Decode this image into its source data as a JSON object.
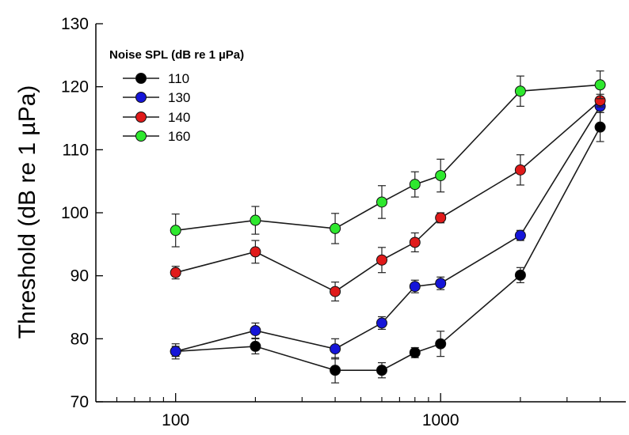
{
  "chart_data": {
    "type": "line",
    "title": "",
    "xlabel": "",
    "ylabel": "Threshold (dB re 1 µPa)",
    "x_scale": "log",
    "xlim": [
      50,
      5000
    ],
    "ylim": [
      70,
      130
    ],
    "x_ticks": [
      100,
      1000
    ],
    "x_tick_labels": [
      "100",
      "1000"
    ],
    "y_ticks": [
      70,
      80,
      90,
      100,
      110,
      120,
      130
    ],
    "y_tick_labels": [
      "70",
      "80",
      "90",
      "100",
      "110",
      "120",
      "130"
    ],
    "grid": false,
    "legend_title": "Noise SPL (dB re 1 µPa)",
    "legend_position": "top-left",
    "x": [
      100,
      200,
      400,
      600,
      800,
      1000,
      2000,
      4000
    ],
    "series": [
      {
        "name": "110",
        "color": "#000000",
        "values": [
          78.0,
          78.8,
          75.0,
          75.0,
          77.8,
          79.2,
          90.1,
          113.6
        ],
        "errors": [
          0.8,
          1.2,
          2.0,
          1.2,
          0.8,
          2.0,
          1.2,
          2.3
        ]
      },
      {
        "name": "130",
        "color": "#1515d8",
        "values": [
          78.0,
          81.3,
          78.4,
          82.5,
          88.3,
          88.8,
          96.4,
          116.9
        ],
        "errors": [
          1.2,
          1.2,
          1.6,
          1.0,
          1.0,
          1.0,
          0.8,
          1.0
        ]
      },
      {
        "name": "140",
        "color": "#e01a1a",
        "values": [
          90.5,
          93.8,
          87.5,
          92.5,
          95.3,
          99.2,
          106.8,
          117.8
        ],
        "errors": [
          1.0,
          1.8,
          1.5,
          2.0,
          1.5,
          0.8,
          2.4,
          1.0
        ]
      },
      {
        "name": "160",
        "color": "#2ee82e",
        "values": [
          97.2,
          98.8,
          97.5,
          101.7,
          104.5,
          105.9,
          119.3,
          120.3
        ],
        "errors": [
          2.6,
          2.2,
          2.4,
          2.6,
          2.0,
          2.6,
          2.4,
          2.2
        ]
      }
    ]
  }
}
